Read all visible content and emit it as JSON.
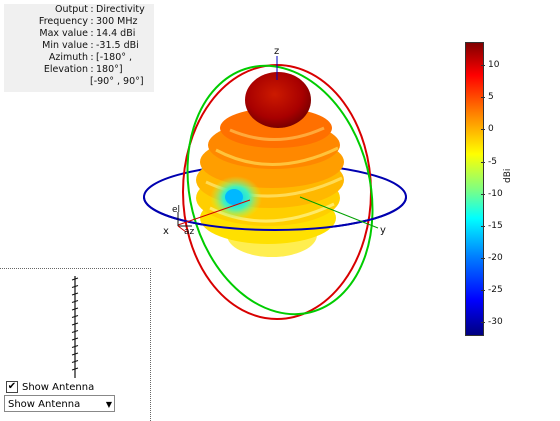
{
  "info": {
    "rows": [
      {
        "key": "Output",
        "value": "Directivity"
      },
      {
        "key": "Frequency",
        "value": "300 MHz"
      },
      {
        "key": "Max value",
        "value": "14.4 dBi"
      },
      {
        "key": "Min value",
        "value": "-31.5 dBi"
      },
      {
        "key": "Azimuth",
        "value": "[-180° ,"
      },
      {
        "key": "Elevation",
        "value": "180°]"
      }
    ],
    "continuation": "[-90° , 90°]"
  },
  "axes": {
    "x": "x",
    "y": "y",
    "z": "z",
    "el": "el",
    "az": "az"
  },
  "colorbar": {
    "unit": "dBi",
    "ticks": [
      "10",
      "5",
      "0",
      "-5",
      "-10",
      "-15",
      "-20",
      "-25",
      "-30"
    ]
  },
  "controls": {
    "checkbox_label": "Show Antenna",
    "checkbox_checked": true,
    "dropdown_value": "Show Antenna"
  }
}
